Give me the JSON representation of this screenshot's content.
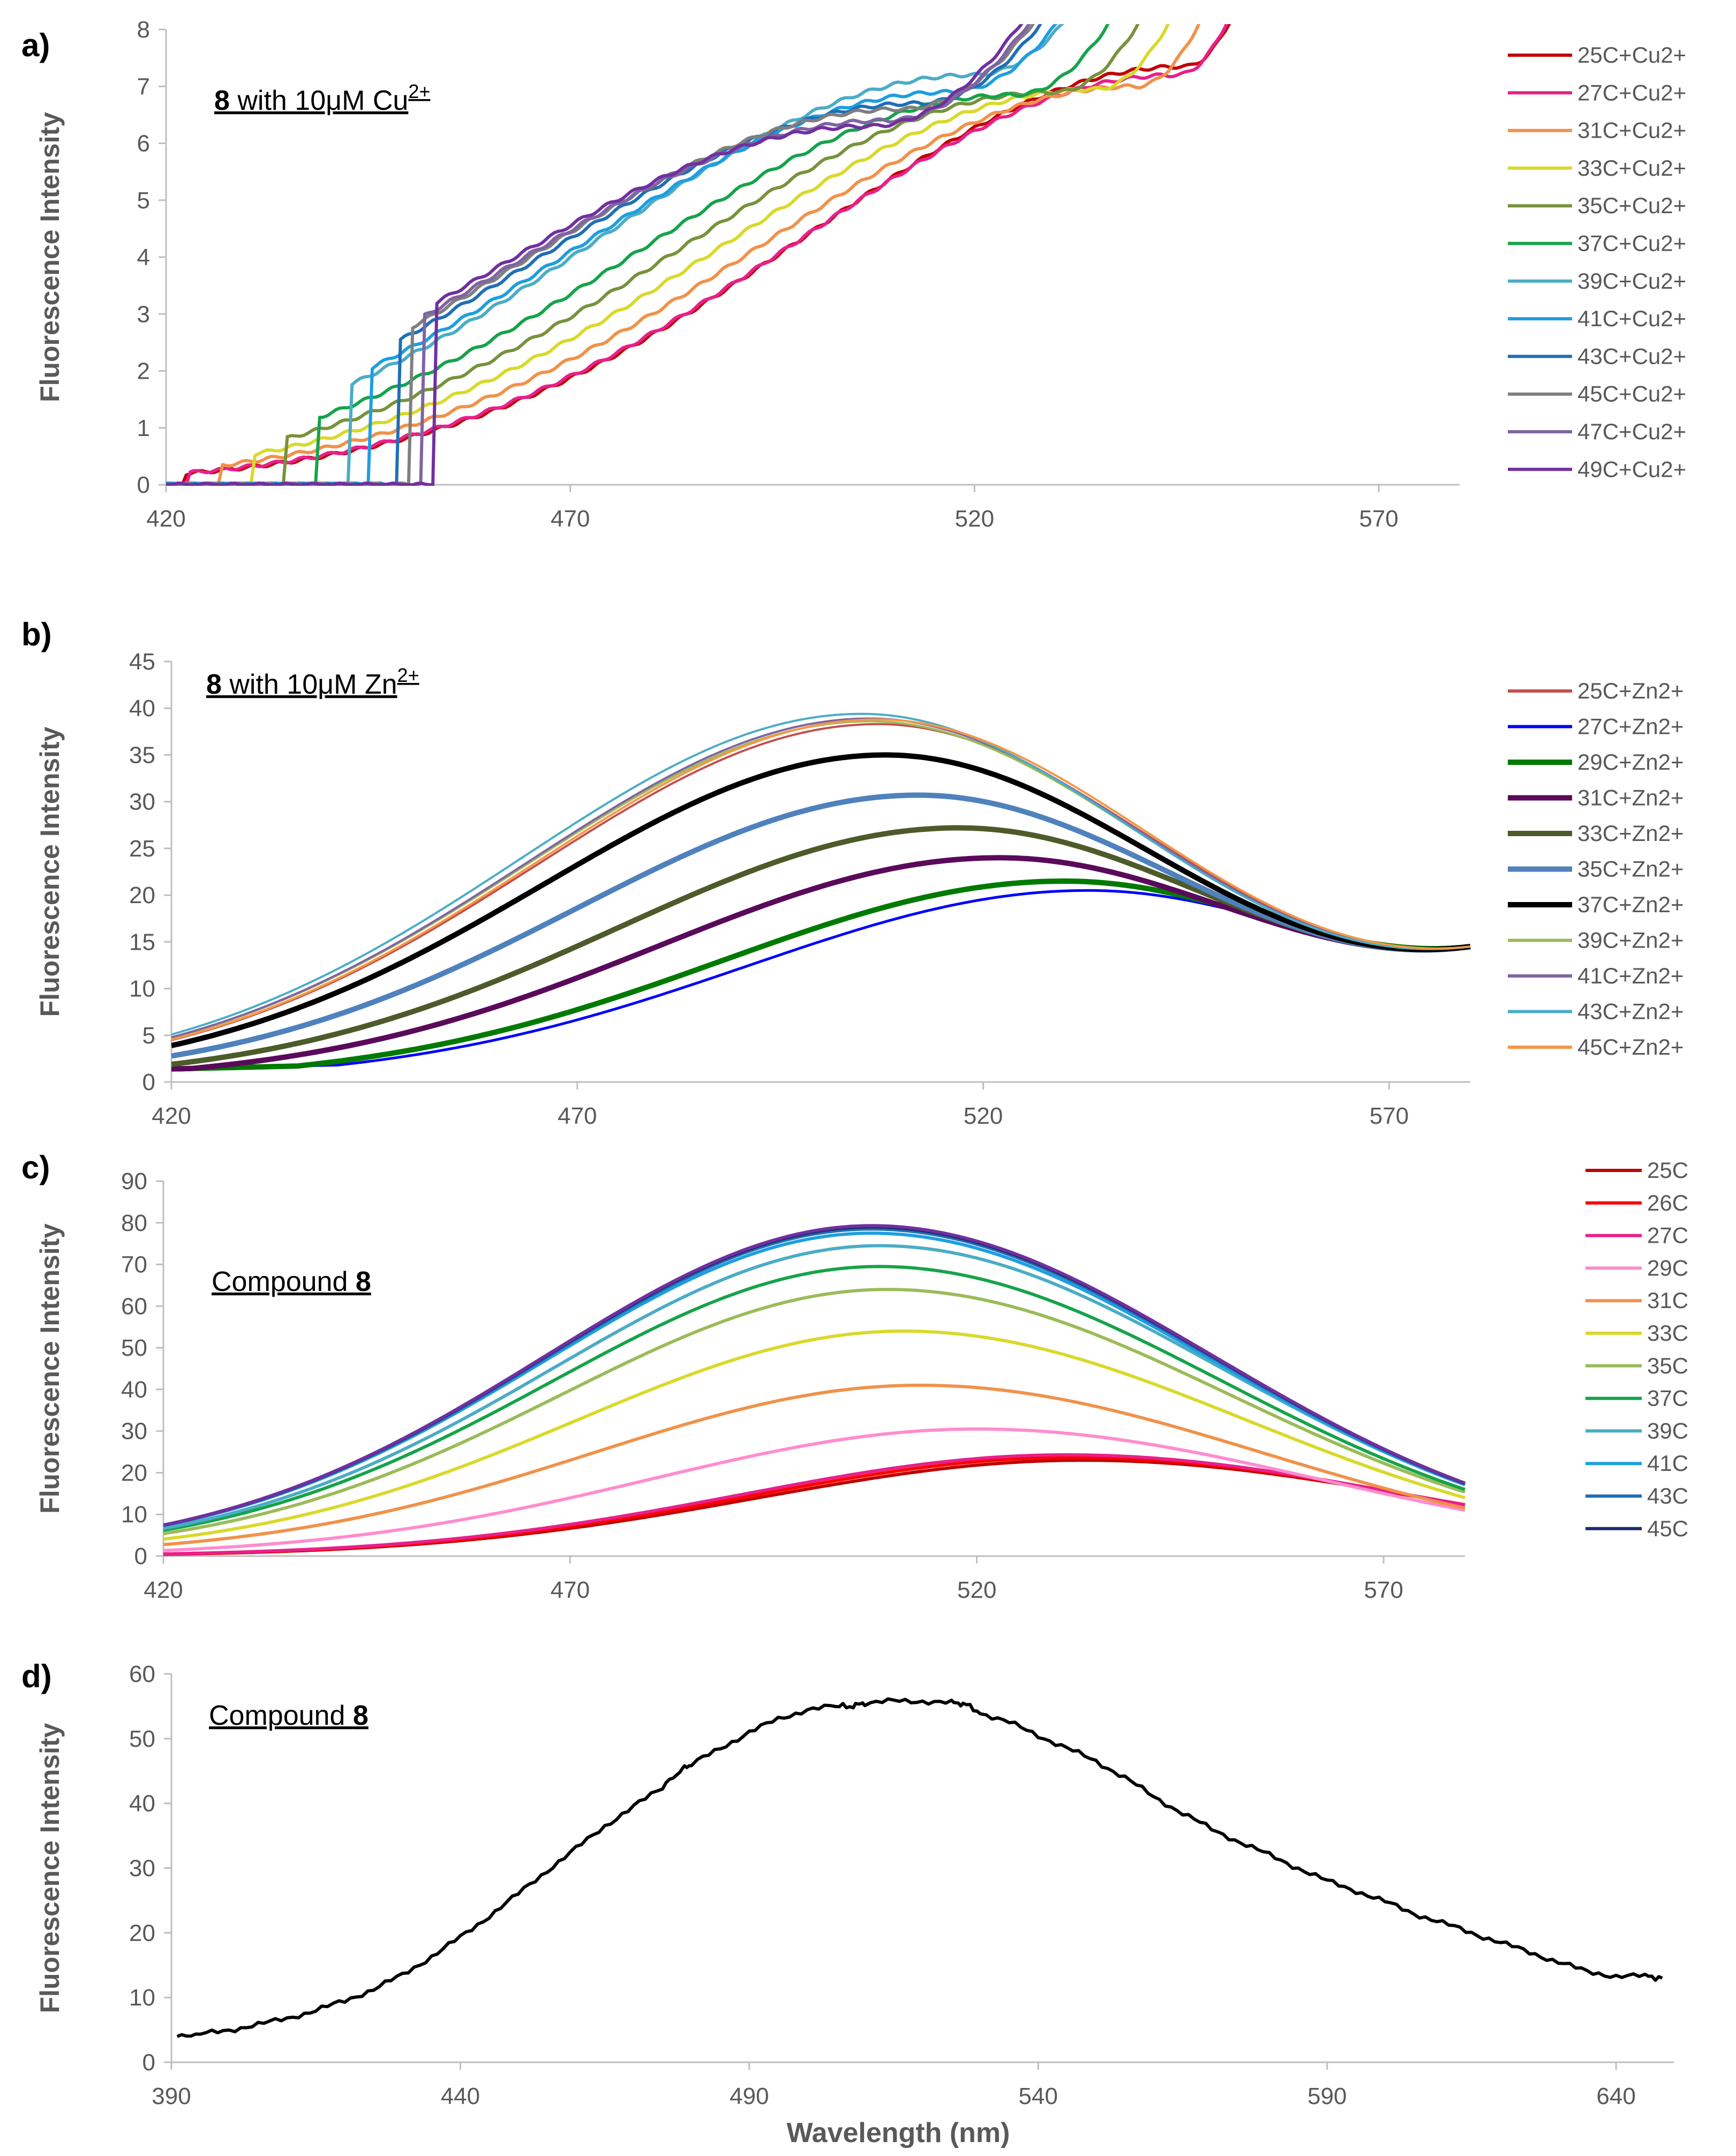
{
  "figure": {
    "x_axis_label": "Wavelength (nm)",
    "y_axis_label": "Fluorescence Intensity"
  },
  "chart_data": [
    {
      "panel": "a)",
      "type": "line",
      "annotation": {
        "bold": "8",
        "text": " with 10μM Cu",
        "sup": "2+"
      },
      "ylabel": "Fluorescence Intensity",
      "xlim": [
        420,
        580
      ],
      "ylim": [
        0,
        8
      ],
      "xticks": [
        420,
        470,
        520,
        570
      ],
      "yticks": [
        0,
        1,
        2,
        3,
        4,
        5,
        6,
        7,
        8
      ],
      "model": {
        "s0": 38,
        "peak_base": 546,
        "slope": -2.7,
        "sigL": 46,
        "sigR": 60,
        "x0": 418,
        "onset_base": 443,
        "onset_slope": -0.8
      },
      "series": [
        {
          "name": "25C+Cu2+",
          "color": "#c00000",
          "peak": 7.35,
          "peak_x": 546,
          "width": 6
        },
        {
          "name": "27C+Cu2+",
          "color": "#e8208a",
          "peak": 7.2,
          "peak_x": 545,
          "width": 6
        },
        {
          "name": "31C+Cu2+",
          "color": "#f0924a",
          "peak": 7.0,
          "peak_x": 540,
          "width": 6
        },
        {
          "name": "33C+Cu2+",
          "color": "#d9d92b",
          "peak": 6.95,
          "peak_x": 535,
          "width": 6
        },
        {
          "name": "35C+Cu2+",
          "color": "#77923c",
          "peak": 6.9,
          "peak_x": 530,
          "width": 6
        },
        {
          "name": "37C+Cu2+",
          "color": "#16a34a",
          "peak": 6.85,
          "peak_x": 525,
          "width": 6
        },
        {
          "name": "39C+Cu2+",
          "color": "#4bacc6",
          "peak": 7.2,
          "peak_x": 520,
          "width": 6
        },
        {
          "name": "41C+Cu2+",
          "color": "#1e9ee0",
          "peak": 6.9,
          "peak_x": 517,
          "width": 6
        },
        {
          "name": "43C+Cu2+",
          "color": "#1f6fb5",
          "peak": 6.7,
          "peak_x": 513,
          "width": 6
        },
        {
          "name": "45C+Cu2+",
          "color": "#7f7f7f",
          "peak": 6.6,
          "peak_x": 511,
          "width": 6
        },
        {
          "name": "47C+Cu2+",
          "color": "#8064a2",
          "peak": 6.4,
          "peak_x": 509,
          "width": 6
        },
        {
          "name": "49C+Cu2+",
          "color": "#7030a0",
          "peak": 6.3,
          "peak_x": 507,
          "width": 6
        }
      ]
    },
    {
      "panel": "b)",
      "type": "line",
      "annotation": {
        "bold": "8",
        "text": " with 10μM Zn",
        "sup": "2+"
      },
      "ylabel": "Fluorescence Intensity",
      "xlim": [
        420,
        580
      ],
      "ylim": [
        0,
        45
      ],
      "xticks": [
        420,
        470,
        520,
        570
      ],
      "yticks": [
        0,
        5,
        10,
        15,
        20,
        25,
        30,
        35,
        40,
        45
      ],
      "model": {
        "s0": 14.5,
        "peak_base": 533,
        "slope": -2.0,
        "sigL": 42,
        "sigR": 46,
        "x0": 420,
        "onset_base": 420,
        "onset_slope": 0
      },
      "series": [
        {
          "name": "25C+Zn2+",
          "color": "#c0504d",
          "peak": 38.3,
          "peak_x": 507,
          "width": 4
        },
        {
          "name": "27C+Zn2+",
          "color": "#0000ff",
          "peak": 20.5,
          "peak_x": 533,
          "width": 5
        },
        {
          "name": "29C+Zn2+",
          "color": "#007a00",
          "peak": 21.5,
          "peak_x": 530,
          "width": 10
        },
        {
          "name": "31C+Zn2+",
          "color": "#5a0a5a",
          "peak": 24.0,
          "peak_x": 522,
          "width": 10
        },
        {
          "name": "33C+Zn2+",
          "color": "#4d5a2a",
          "peak": 27.2,
          "peak_x": 517,
          "width": 10
        },
        {
          "name": "35C+Zn2+",
          "color": "#4f81bd",
          "peak": 30.7,
          "peak_x": 512,
          "width": 10
        },
        {
          "name": "37C+Zn2+",
          "color": "#000000",
          "peak": 35.0,
          "peak_x": 508,
          "width": 10
        },
        {
          "name": "39C+Zn2+",
          "color": "#9bbb59",
          "peak": 38.6,
          "peak_x": 506,
          "width": 4
        },
        {
          "name": "41C+Zn2+",
          "color": "#8064a2",
          "peak": 38.9,
          "peak_x": 506,
          "width": 4
        },
        {
          "name": "43C+Zn2+",
          "color": "#4bacc6",
          "peak": 39.4,
          "peak_x": 505,
          "width": 4
        },
        {
          "name": "45C+Zn2+",
          "color": "#f79646",
          "peak": 38.8,
          "peak_x": 507,
          "width": 4
        }
      ]
    },
    {
      "panel": "c)",
      "type": "line",
      "annotation": {
        "text": "Compound ",
        "bold": "8"
      },
      "ylabel": "Fluorescence Intensity",
      "xlim": [
        420,
        580
      ],
      "ylim": [
        0,
        90
      ],
      "xticks": [
        420,
        470,
        520,
        570
      ],
      "yticks": [
        0,
        10,
        20,
        30,
        40,
        50,
        60,
        70,
        80,
        90
      ],
      "model": {
        "s0": 0,
        "peak_base": 0,
        "slope": 0,
        "sigL": 40,
        "sigR": 42,
        "x0": 420,
        "onset_base": 420,
        "onset_slope": 0
      },
      "series": [
        {
          "name": "25C",
          "color": "#c00000",
          "peak": 23.0,
          "peak_x": 533,
          "width": 6
        },
        {
          "name": "26C",
          "color": "#ff0000",
          "peak": 23.7,
          "peak_x": 532,
          "width": 6
        },
        {
          "name": "27C",
          "color": "#e8208a",
          "peak": 24.3,
          "peak_x": 531,
          "width": 6
        },
        {
          "name": "29C",
          "color": "#ff8ccf",
          "peak": 30.5,
          "peak_x": 520,
          "width": 6
        },
        {
          "name": "31C",
          "color": "#f0924a",
          "peak": 41.0,
          "peak_x": 513,
          "width": 6
        },
        {
          "name": "33C",
          "color": "#d9d92b",
          "peak": 54.0,
          "peak_x": 511,
          "width": 6
        },
        {
          "name": "35C",
          "color": "#9bbb59",
          "peak": 64.0,
          "peak_x": 509,
          "width": 6
        },
        {
          "name": "37C",
          "color": "#16a34a",
          "peak": 69.5,
          "peak_x": 508,
          "width": 6
        },
        {
          "name": "39C",
          "color": "#4bacc6",
          "peak": 74.5,
          "peak_x": 508,
          "width": 6
        },
        {
          "name": "41C",
          "color": "#1e9ee0",
          "peak": 77.5,
          "peak_x": 507,
          "width": 6
        },
        {
          "name": "43C",
          "color": "#1f6fb5",
          "peak": 78.5,
          "peak_x": 507,
          "width": 6
        },
        {
          "name": "45C",
          "color": "#1f2a6e",
          "peak": 79.0,
          "peak_x": 507,
          "width": 6
        },
        {
          "name": "",
          "color": "#7030a0",
          "peak": 79.3,
          "peak_x": 507,
          "width": 6
        }
      ]
    },
    {
      "panel": "d)",
      "type": "line",
      "annotation": {
        "text": "Compound ",
        "bold": "8"
      },
      "ylabel": "Fluorescence Intensity",
      "xlabel": "Wavelength (nm)",
      "xlim": [
        390,
        650
      ],
      "ylim": [
        0,
        60
      ],
      "xticks": [
        390,
        440,
        490,
        540,
        590,
        640
      ],
      "yticks": [
        0,
        10,
        20,
        30,
        40,
        50,
        60
      ],
      "series": [
        {
          "name": "Compound 8",
          "color": "#000000",
          "x": [
            391,
            395,
            400,
            405,
            410,
            415,
            420,
            425,
            430,
            435,
            440,
            445,
            450,
            455,
            460,
            465,
            470,
            475,
            478,
            480,
            485,
            490,
            495,
            500,
            505,
            508,
            510,
            515,
            520,
            525,
            527,
            530,
            535,
            540,
            545,
            550,
            555,
            560,
            565,
            570,
            575,
            580,
            585,
            590,
            595,
            600,
            605,
            610,
            615,
            620,
            625,
            630,
            635,
            640,
            645,
            648
          ],
          "values": [
            4.0,
            4.3,
            5.0,
            5.8,
            6.8,
            8.0,
            9.5,
            11.3,
            13.5,
            16.3,
            19.3,
            22.6,
            26.0,
            29.6,
            33.0,
            36.5,
            39.5,
            42.5,
            45.0,
            46.0,
            48.5,
            51.0,
            53.0,
            54.5,
            55.0,
            55.0,
            55.5,
            55.8,
            55.8,
            55.5,
            55.5,
            54.0,
            52.5,
            50.5,
            48.5,
            46.5,
            44.0,
            41.0,
            38.5,
            36.0,
            34.0,
            32.0,
            30.0,
            28.0,
            26.5,
            24.8,
            23.0,
            21.5,
            20.0,
            18.5,
            17.0,
            15.5,
            14.0,
            13.3,
            13.3,
            13.0
          ],
          "width": 6
        }
      ]
    }
  ]
}
